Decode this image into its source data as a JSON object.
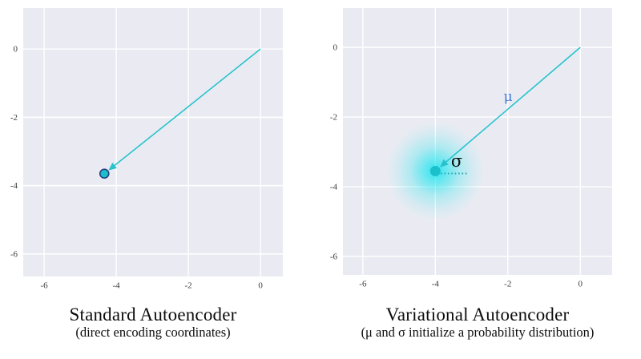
{
  "figure": {
    "background": "#ffffff",
    "description_left_caption_title": "Standard Autoencoder",
    "description_right_caption_title": "Variational Autoencoder"
  },
  "colors": {
    "plot_bg": "#eaebf2",
    "grid": "#ffffff",
    "line": "#27c3cd",
    "point_fill": "#1ac0cc",
    "point_edge": "#29417f",
    "glow": "#00e4ee",
    "tick": "#3a3a3a",
    "caption": "#0d0d0d",
    "sigma_dots": "#2aa8b0"
  },
  "chart_data": [
    {
      "type": "line",
      "title": "Standard Autoencoder",
      "subtitle": "(direct encoding coordinates)",
      "xlim": [
        -6.58,
        0.62
      ],
      "ylim": [
        -6.66,
        1.2
      ],
      "xticks": [
        -6,
        -4,
        -2,
        0
      ],
      "yticks": [
        0,
        -2,
        -4,
        -6
      ],
      "grid": true,
      "legend": false,
      "arrow": {
        "from": [
          0,
          0
        ],
        "to": [
          -4.33,
          -3.65
        ]
      },
      "point": {
        "x": -4.33,
        "y": -3.65,
        "radius_px": 5.5,
        "edged": true
      },
      "annotations": []
    },
    {
      "type": "line",
      "title": "Variational Autoencoder",
      "subtitle": "(μ and σ initialize a probability distribution)",
      "xlim": [
        -6.55,
        0.88
      ],
      "ylim": [
        -6.53,
        1.13
      ],
      "xticks": [
        -6,
        -4,
        -2,
        0
      ],
      "yticks": [
        0,
        -2,
        -4,
        -6
      ],
      "grid": true,
      "legend": false,
      "arrow": {
        "from": [
          0,
          0
        ],
        "to": [
          -4.0,
          -3.55
        ]
      },
      "point": {
        "x": -4.0,
        "y": -3.55,
        "radius_px": 6.5,
        "edged": false
      },
      "glow": {
        "x": -4.0,
        "y": -3.55,
        "radius_px": 62
      },
      "sigma_line": {
        "from": [
          -3.85,
          -3.62
        ],
        "to": [
          -3.08,
          -3.62
        ]
      },
      "annotations": [
        {
          "text": "μ",
          "x": -1.99,
          "y": -1.54,
          "color": "#4379d6",
          "size": 17,
          "name": "mu-label"
        },
        {
          "text": "σ",
          "x": -3.41,
          "y": -3.42,
          "color": "#0d0d0d",
          "size": 21,
          "name": "sigma-label"
        }
      ]
    }
  ]
}
